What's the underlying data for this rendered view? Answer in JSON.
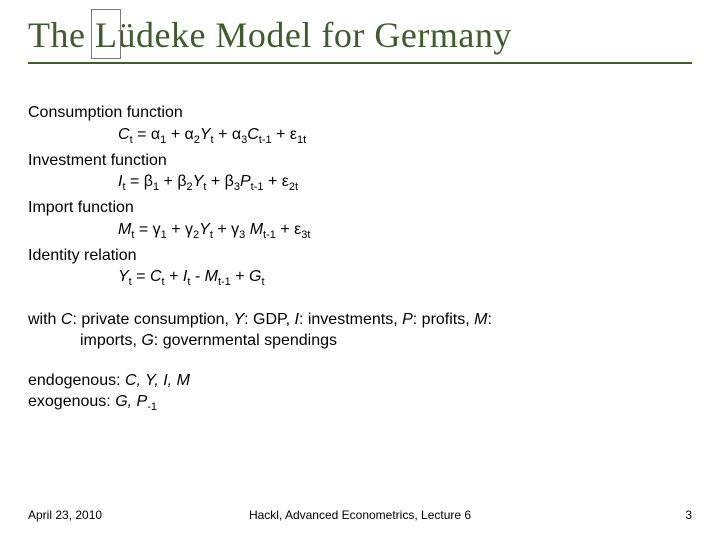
{
  "title_prefix": "The ",
  "title_accent": "L",
  "title_rest": "üdeke Model for Germany",
  "sections": {
    "consumption_label": "Consumption function",
    "investment_label": "Investment function",
    "import_label": "Import function",
    "identity_label": "Identity relation"
  },
  "equations": {
    "consumption": {
      "lhs_var": "C",
      "lhs_sub": "t",
      "c1": "α",
      "c1_sub": "1",
      "c2": "α",
      "c2_sub": "2",
      "v2": "Y",
      "v2_sub": "t",
      "c3": "α",
      "c3_sub": "3",
      "v3": "C",
      "v3_sub": "t-1",
      "err": "ε",
      "err_sub": "1t"
    },
    "investment": {
      "lhs_var": "I",
      "lhs_sub": "t",
      "c1": "β",
      "c1_sub": "1",
      "c2": "β",
      "c2_sub": "2",
      "v2": "Y",
      "v2_sub": "t",
      "c3": "β",
      "c3_sub": "3",
      "v3": "P",
      "v3_sub": "t-1",
      "err": "ε",
      "err_sub": "2t"
    },
    "import": {
      "lhs_var": "M",
      "lhs_sub": "t",
      "c1": "γ",
      "c1_sub": "1",
      "c2": "γ",
      "c2_sub": "2",
      "v2": "Y",
      "v2_sub": "t",
      "c3": "γ",
      "c3_sub": "3",
      "v3": " M",
      "v3_sub": "t-1",
      "err": "ε",
      "err_sub": "3t"
    },
    "identity": {
      "lhs_var": "Y",
      "lhs_sub": "t",
      "t1": "C",
      "t1_sub": "t",
      "t2": "I",
      "t2_sub": "t",
      "t3": "M",
      "t3_sub": "t-1",
      "t4": "G",
      "t4_sub": "t"
    }
  },
  "legend": {
    "line1_pre": "with ",
    "C": "C",
    "C_desc": ": private consumption, ",
    "Y": "Y",
    "Y_desc": ": GDP, ",
    "I": "I",
    "I_desc": ": investments, ",
    "P": "P",
    "P_desc": ": profits, ",
    "M": "M",
    "M_desc": ":",
    "line2_pre": "imports, ",
    "G": "G",
    "G_desc": ": governmental spendings"
  },
  "endogenous_label": "endogenous: ",
  "endogenous_vars": "C, Y, I, M",
  "exogenous_label": "exogenous: ",
  "exogenous_vars_1": "G, P",
  "exogenous_sub": "-1",
  "footer": {
    "date": "April 23, 2010",
    "center": "Hackl, Advanced Econometrics, Lecture 6",
    "page": "3"
  },
  "colors": {
    "title": "#3f5c2b",
    "text": "#000000",
    "background": "#ffffff"
  }
}
